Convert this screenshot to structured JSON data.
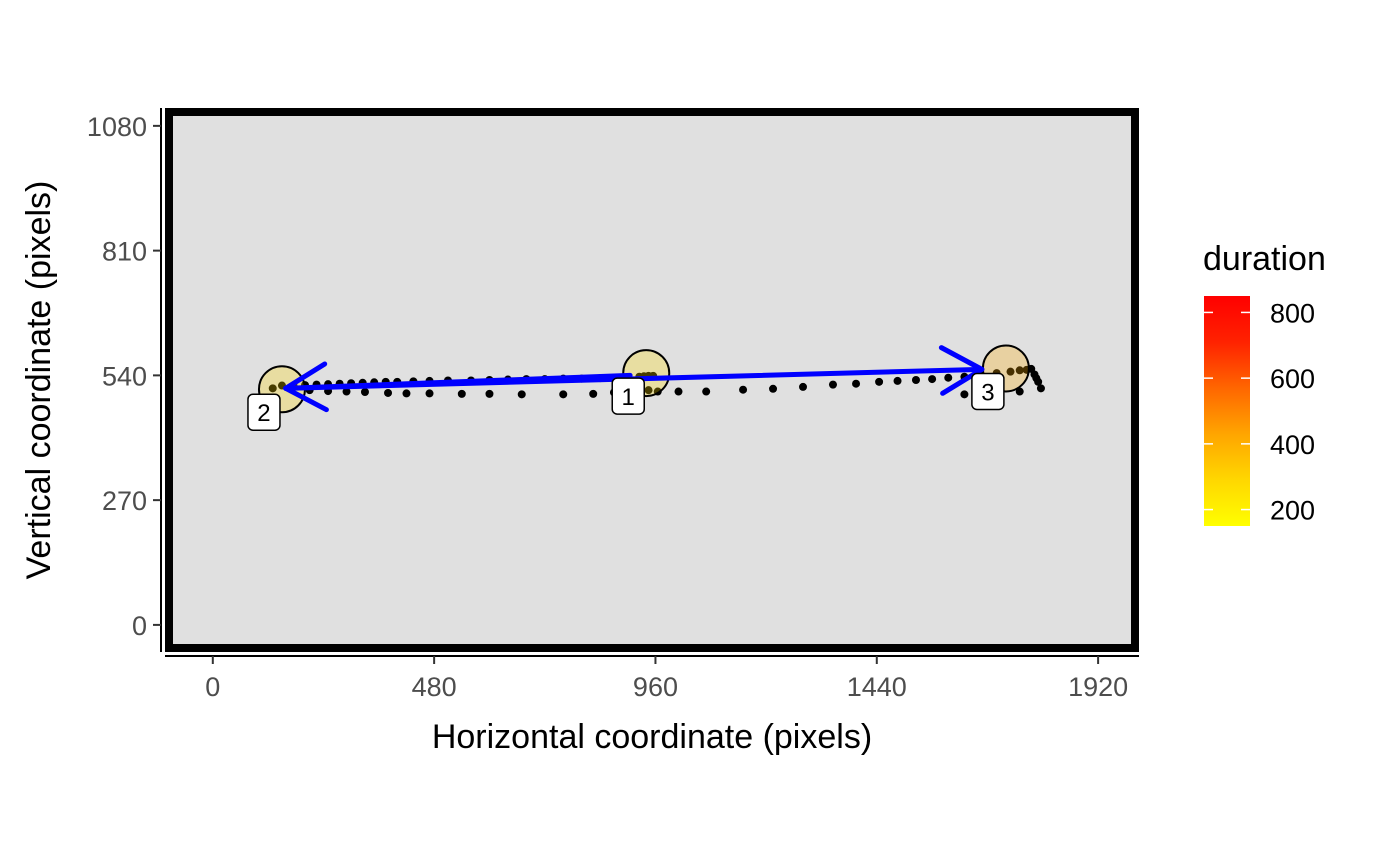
{
  "chart_data": {
    "type": "scatter",
    "xlabel": "Horizontal coordinate (pixels)",
    "ylabel": "Vertical coordinate (pixels)",
    "xlim": [
      -95,
      2000
    ],
    "ylim": [
      -50,
      1110
    ],
    "xticks": [
      0,
      480,
      960,
      1440,
      1920
    ],
    "yticks": [
      0,
      270,
      540,
      810,
      1080
    ],
    "grid": false,
    "panel_background": "#e0e0e0",
    "panel_border": "#000000",
    "gaze_point_color": "#000000",
    "saccade_color": "#0000ff",
    "legend": {
      "title": "duration",
      "position": "right",
      "range": [
        150,
        850
      ],
      "breaks": [
        200,
        400,
        600,
        800
      ],
      "colors": [
        "#ffff00",
        "#ffd700",
        "#ffa500",
        "#ff6600",
        "#ff2200",
        "#ff0000"
      ]
    },
    "gaze_points": [
      [
        150,
        518
      ],
      [
        175,
        518
      ],
      [
        200,
        519
      ],
      [
        225,
        520
      ],
      [
        250,
        521
      ],
      [
        275,
        522
      ],
      [
        300,
        523
      ],
      [
        325,
        524
      ],
      [
        350,
        525
      ],
      [
        375,
        526
      ],
      [
        400,
        526
      ],
      [
        435,
        527
      ],
      [
        470,
        528
      ],
      [
        510,
        529
      ],
      [
        560,
        529
      ],
      [
        600,
        530
      ],
      [
        640,
        531
      ],
      [
        680,
        532
      ],
      [
        720,
        532
      ],
      [
        760,
        533
      ],
      [
        800,
        533
      ],
      [
        840,
        534
      ],
      [
        870,
        534
      ],
      [
        900,
        534
      ],
      [
        925,
        537
      ],
      [
        935,
        538
      ],
      [
        945,
        539
      ],
      [
        955,
        539
      ],
      [
        965,
        505
      ],
      [
        1010,
        505
      ],
      [
        1070,
        505
      ],
      [
        1150,
        509
      ],
      [
        1215,
        511
      ],
      [
        1280,
        515
      ],
      [
        1345,
        520
      ],
      [
        1395,
        522
      ],
      [
        1445,
        526
      ],
      [
        1485,
        528
      ],
      [
        1525,
        530
      ],
      [
        1560,
        532
      ],
      [
        1595,
        535
      ],
      [
        1630,
        537
      ],
      [
        1665,
        540
      ],
      [
        1700,
        545
      ],
      [
        1730,
        548
      ],
      [
        1750,
        551
      ],
      [
        1765,
        552
      ],
      [
        1775,
        554
      ],
      [
        1782,
        542
      ],
      [
        1786,
        534
      ],
      [
        1790,
        526
      ],
      [
        1796,
        512
      ],
      [
        1750,
        505
      ],
      [
        1690,
        502
      ],
      [
        1630,
        499
      ],
      [
        130,
        512
      ],
      [
        170,
        510
      ],
      [
        210,
        508
      ],
      [
        250,
        506
      ],
      [
        290,
        505
      ],
      [
        330,
        504
      ],
      [
        380,
        502
      ],
      [
        420,
        501
      ],
      [
        470,
        501
      ],
      [
        540,
        500
      ],
      [
        600,
        500
      ],
      [
        670,
        499
      ],
      [
        760,
        499
      ],
      [
        825,
        500
      ],
      [
        870,
        503
      ],
      [
        905,
        506
      ],
      [
        945,
        508
      ]
    ],
    "fixations": [
      {
        "label": "1",
        "x": 940,
        "y": 545,
        "duration": 250
      },
      {
        "label": "2",
        "x": 150,
        "y": 510,
        "duration": 260
      },
      {
        "label": "3",
        "x": 1720,
        "y": 555,
        "duration": 380
      }
    ],
    "saccades": [
      {
        "from": "1",
        "to": "2",
        "x1": 905,
        "y1": 540,
        "x2": 158,
        "y2": 512
      },
      {
        "from": "2",
        "to": "3",
        "x1": 158,
        "y1": 512,
        "x2": 1668,
        "y2": 553
      }
    ]
  }
}
